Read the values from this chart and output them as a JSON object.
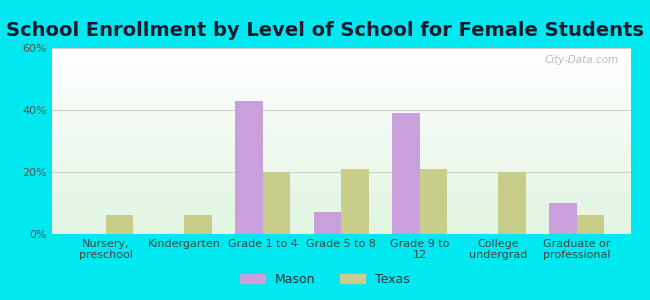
{
  "title": "School Enrollment by Level of School for Female Students",
  "categories": [
    "Nursery,\npreschool",
    "Kindergarten",
    "Grade 1 to 4",
    "Grade 5 to 8",
    "Grade 9 to\n12",
    "College\nundergrad",
    "Graduate or\nprofessional"
  ],
  "mason_values": [
    0,
    0,
    43,
    7,
    39,
    0,
    10
  ],
  "texas_values": [
    6,
    6,
    20,
    21,
    21,
    20,
    6
  ],
  "mason_color": "#c9a0dc",
  "texas_color": "#c8cd8a",
  "ylim": [
    0,
    60
  ],
  "yticks": [
    0,
    20,
    40,
    60
  ],
  "ytick_labels": [
    "0%",
    "20%",
    "40%",
    "60%"
  ],
  "background_color": "#00e8f0",
  "title_fontsize": 14,
  "tick_fontsize": 8,
  "legend_fontsize": 9,
  "bar_width": 0.35,
  "grid_color": "#cccccc",
  "watermark": "City-Data.com"
}
